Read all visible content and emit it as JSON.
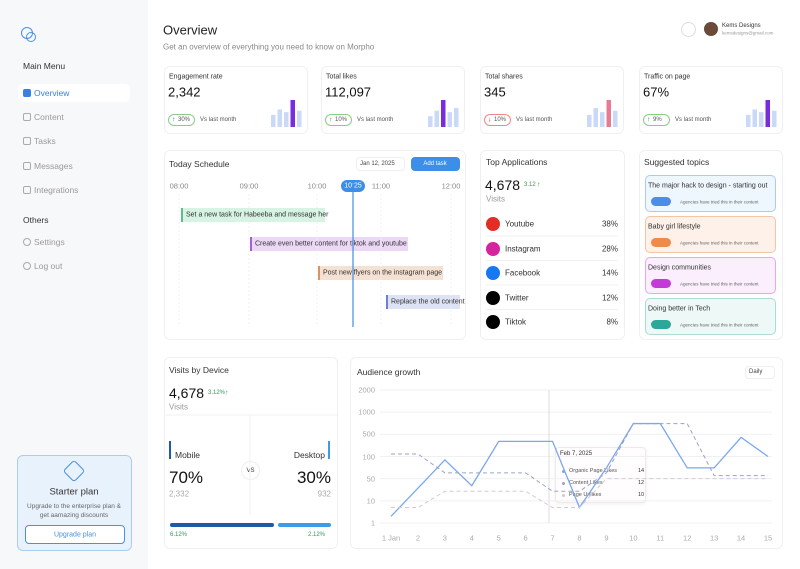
{
  "sidebar": {
    "menu_title": "Main Menu",
    "menu": [
      "Overview",
      "Content",
      "Tasks",
      "Messages",
      "Integrations"
    ],
    "others_title": "Others",
    "others": [
      "Settings",
      "Log out"
    ],
    "promo": {
      "title": "Starter plan",
      "text": "Upgrade to the enterprise plan & get aamazing discounts",
      "button": "Upgrade plan"
    }
  },
  "header": {
    "title": "Overview",
    "subtitle": "Get an overview of everything you need to know on Morpho",
    "user": "Kems Designs",
    "email": "kemsdesigns@gmail.com"
  },
  "stats": [
    {
      "label": "Engagement rate",
      "value": "2,342",
      "change": "30%",
      "arrow": "↑",
      "note": "Vs last month",
      "bars": [
        45,
        65,
        55,
        100,
        60
      ],
      "accent": "#7a2be2"
    },
    {
      "label": "Total likes",
      "value": "112,097",
      "change": "10%",
      "arrow": "↑",
      "note": "Vs last month",
      "bars": [
        40,
        60,
        100,
        55,
        70
      ],
      "accent": "#7a2be2"
    },
    {
      "label": "Total shares",
      "value": "345",
      "change": "10%",
      "arrow": "↓",
      "note": "Vs last month",
      "bars": [
        45,
        70,
        55,
        100,
        60
      ],
      "accent": "#e77b95"
    },
    {
      "label": "Traffic on page",
      "value": "67%",
      "change": "9%",
      "arrow": "↑",
      "note": "Vs last month",
      "bars": [
        45,
        65,
        55,
        100,
        60
      ],
      "accent": "#7a2be2"
    }
  ],
  "schedule": {
    "title": "Today Schedule",
    "date": "Jan 12, 2025",
    "button": "Add task",
    "times": [
      "08:00",
      "09:00",
      "10:00",
      "11:00",
      "12:00"
    ],
    "now": "10:25",
    "tasks": [
      "Set a new task for Habeeba and message her",
      "Create even better content for tiktok and youtube",
      "Post new flyers on the instagram page",
      "Replace the old content"
    ]
  },
  "apps": {
    "title": "Top Applications",
    "total": "4,678",
    "change": "3.12",
    "arrow": "↑",
    "caption": "Visits",
    "items": [
      {
        "name": "Youtube",
        "share": "38%"
      },
      {
        "name": "Instagram",
        "share": "28%"
      },
      {
        "name": "Facebook",
        "share": "14%"
      },
      {
        "name": "Twitter",
        "share": "12%"
      },
      {
        "name": "Tiktok",
        "share": "8%"
      }
    ]
  },
  "topics": {
    "title": "Suggested topics",
    "items": [
      {
        "title": "The major hack to design - starting out",
        "note": "Agencies have tried this in their content"
      },
      {
        "title": "Baby girl lifestyle",
        "note": "Agencies have tried this in their content"
      },
      {
        "title": "Design communities",
        "note": "Agencies have tried this in their content"
      },
      {
        "title": "Doing better in Tech",
        "note": "Agencies have tried this in their content"
      }
    ]
  },
  "devices": {
    "title": "Visits by Device",
    "total": "4,678",
    "change": "3.12%",
    "arrow": "↑",
    "caption": "Visits",
    "vs": "VS",
    "mobile": {
      "name": "Mobile",
      "share": "70%",
      "count": "2,332",
      "change": "6.12%"
    },
    "desktop": {
      "name": "Desktop",
      "share": "30%",
      "count": "932",
      "change": "2.12%"
    }
  },
  "audience": {
    "title": "Audience growth",
    "period": "Daily",
    "categories": [
      "1 Jan",
      "2",
      "3",
      "4",
      "5",
      "6",
      "7",
      "8",
      "9",
      "10",
      "11",
      "12",
      "13",
      "14",
      "15"
    ],
    "yticks": [
      2000,
      1000,
      500,
      100,
      50,
      10,
      1
    ],
    "series": [
      {
        "name": "Organic Page Likes",
        "color": "#7aa7ee",
        "dash": false,
        "values": [
          2,
          25,
          90,
          30,
          300,
          300,
          300,
          5,
          70,
          700,
          700,
          70,
          70,
          400,
          100
        ]
      },
      {
        "name": "Content Likes",
        "color": "#9aa3c6",
        "dash": true,
        "values": [
          120,
          120,
          60,
          60,
          60,
          60,
          20,
          20,
          60,
          700,
          700,
          700,
          55,
          55,
          55
        ]
      },
      {
        "name": "Page Unlikes",
        "color": "#d6c8dc",
        "dash": true,
        "values": [
          5,
          5,
          20,
          20,
          20,
          20,
          5,
          5,
          50,
          50,
          50,
          50,
          50,
          50,
          50
        ]
      }
    ],
    "tooltip": {
      "date": "Feb 7, 2025",
      "values": [
        "14",
        "12",
        "10"
      ]
    }
  }
}
